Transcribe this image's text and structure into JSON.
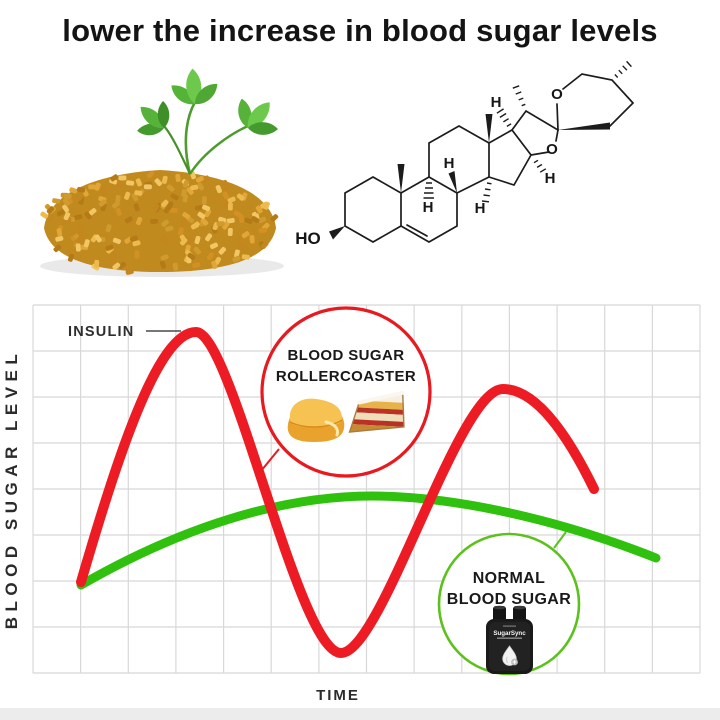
{
  "title": "lower the increase in blood sugar levels",
  "molecule": {
    "hydroxyl_label": "HO",
    "oxygen_label": "O",
    "hydrogen_label": "H"
  },
  "chart": {
    "insulin_annotation": "INSULIN",
    "y_axis_label": "BLOOD SUGAR LEVEL",
    "x_axis_label": "TIME",
    "rollercoaster_callout_line1": "BLOOD SUGAR",
    "rollercoaster_callout_line2": "ROLLERCOASTER",
    "normal_callout_line1": "NORMAL",
    "normal_callout_line2": "BLOOD SUGAR",
    "device_name": "SugarSync"
  },
  "colors": {
    "insulin_line": "#ed1c24",
    "normal_line": "#2fc10d",
    "rollercoaster_circle": "#e8191f",
    "normal_circle": "#5cc11d",
    "grid": "#d8d8d8"
  },
  "chart_data": {
    "type": "line",
    "title": "",
    "xlabel": "TIME",
    "ylabel": "BLOOD SUGAR LEVEL",
    "grid": true,
    "x_range": [
      0,
      14
    ],
    "y_range": [
      0,
      8
    ],
    "tick_labels": "none (qualitative sketch chart)",
    "series": [
      {
        "name": "INSULIN / blood sugar rollercoaster",
        "color": "#ed1c24",
        "x": [
          1.0,
          3.4,
          6.5,
          9.9,
          11.8
        ],
        "y": [
          1.9,
          7.4,
          0.4,
          6.2,
          4.0
        ]
      },
      {
        "name": "NORMAL BLOOD SUGAR",
        "color": "#2fc10d",
        "x": [
          1.0,
          7.1,
          13.1
        ],
        "y": [
          1.9,
          3.9,
          2.5
        ]
      }
    ],
    "annotations": [
      "INSULIN",
      "BLOOD SUGAR ROLLERCOASTER",
      "NORMAL BLOOD SUGAR"
    ]
  }
}
